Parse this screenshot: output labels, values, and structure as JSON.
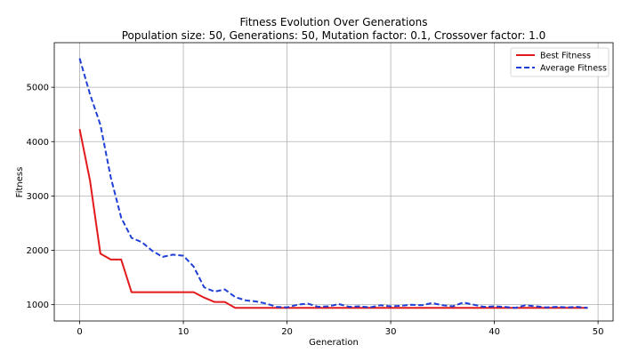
{
  "chart_data": {
    "type": "line",
    "title": "Fitness Evolution Over Generations",
    "subtitle": "Population size: 50, Generations: 50, Mutation factor: 0.1, Crossover factor: 1.0",
    "xlabel": "Generation",
    "ylabel": "Fitness",
    "xlim": [
      -2.45,
      51.45
    ],
    "ylim": [
      700,
      5820
    ],
    "xticks": [
      0,
      10,
      20,
      30,
      40,
      50
    ],
    "yticks": [
      1000,
      2000,
      3000,
      4000,
      5000
    ],
    "grid": true,
    "legend_position": "top-right",
    "x": [
      0,
      1,
      2,
      3,
      4,
      5,
      6,
      7,
      8,
      9,
      10,
      11,
      12,
      13,
      14,
      15,
      16,
      17,
      18,
      19,
      20,
      21,
      22,
      23,
      24,
      25,
      26,
      27,
      28,
      29,
      30,
      31,
      32,
      33,
      34,
      35,
      36,
      37,
      38,
      39,
      40,
      41,
      42,
      43,
      44,
      45,
      46,
      47,
      48,
      49
    ],
    "series": [
      {
        "name": "Best Fitness",
        "color": "#e31a1c",
        "style": "solid",
        "values": [
          4230,
          3280,
          1940,
          1830,
          1830,
          1230,
          1230,
          1230,
          1230,
          1230,
          1230,
          1230,
          1130,
          1050,
          1050,
          940,
          940,
          940,
          940,
          940,
          940,
          940,
          940,
          940,
          940,
          940,
          940,
          940,
          940,
          940,
          940,
          940,
          940,
          940,
          940,
          940,
          940,
          940,
          940,
          940,
          940,
          940,
          940,
          940,
          940,
          940,
          940,
          940,
          940,
          940
        ]
      },
      {
        "name": "Average Fitness",
        "color": "#1f3fd6",
        "style": "dashed",
        "values": [
          5530,
          4870,
          4310,
          3340,
          2600,
          2230,
          2150,
          1990,
          1880,
          1920,
          1900,
          1700,
          1320,
          1240,
          1280,
          1140,
          1080,
          1060,
          1020,
          960,
          950,
          1000,
          1020,
          960,
          970,
          1010,
          960,
          970,
          950,
          990,
          970,
          980,
          1000,
          990,
          1030,
          990,
          970,
          1040,
          1000,
          960,
          970,
          960,
          940,
          990,
          970,
          950,
          960,
          950,
          960,
          940
        ]
      }
    ]
  }
}
